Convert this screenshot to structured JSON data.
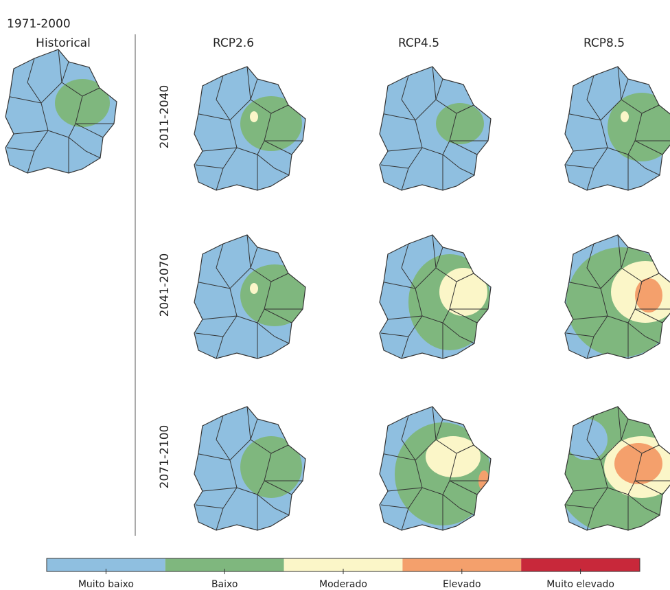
{
  "header": {
    "title": "1971-2000"
  },
  "historical": {
    "label": "Historical"
  },
  "columns": [
    "RCP2.6",
    "RCP4.5",
    "RCP8.5"
  ],
  "rows": [
    "2011-2040",
    "2041-2070",
    "2071-2100"
  ],
  "legend": {
    "items": [
      {
        "label": "Muito baixo",
        "color": "#8fbfe0"
      },
      {
        "label": "Baixo",
        "color": "#7fb77e"
      },
      {
        "label": "Moderado",
        "color": "#fbf6c8"
      },
      {
        "label": "Elevado",
        "color": "#f4a06c"
      },
      {
        "label": "Muito elevado",
        "color": "#c8283a"
      }
    ]
  }
}
